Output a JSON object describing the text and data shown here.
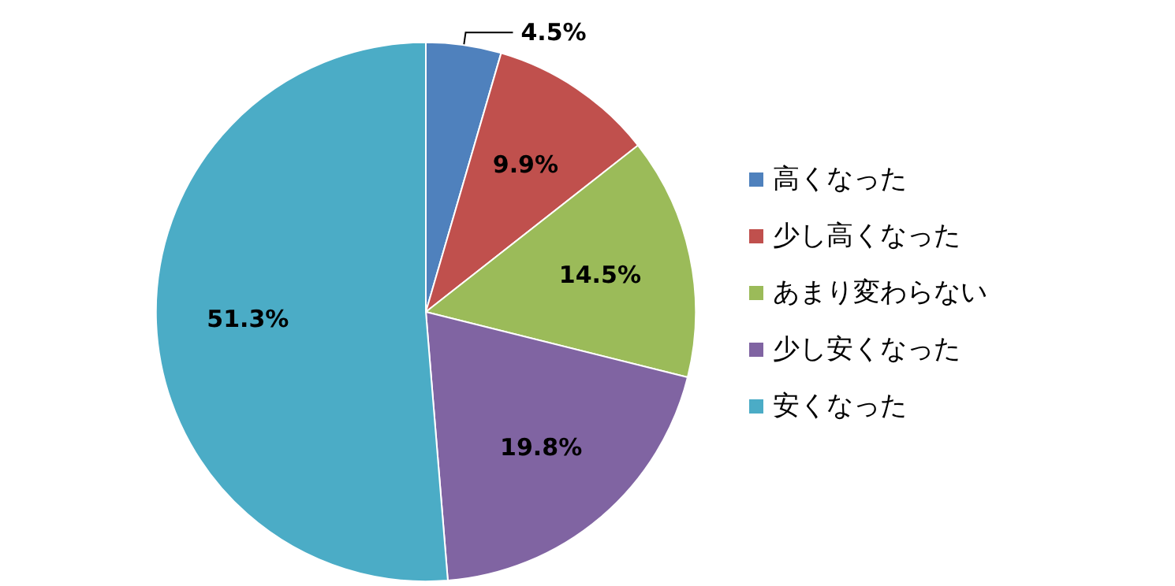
{
  "chart_data": {
    "type": "pie",
    "categories": [
      "高くなった",
      "少し高くなった",
      "あまり変わらない",
      "少し安くなった",
      "安くなった"
    ],
    "values": [
      4.5,
      9.9,
      14.5,
      19.8,
      51.3
    ],
    "value_labels": [
      "4.5%",
      "9.9%",
      "14.5%",
      "19.8%",
      "51.3%"
    ],
    "colors": [
      "#4f81bd",
      "#c0504d",
      "#9bbb59",
      "#8064a2",
      "#4bacc6"
    ],
    "legend": "right"
  }
}
